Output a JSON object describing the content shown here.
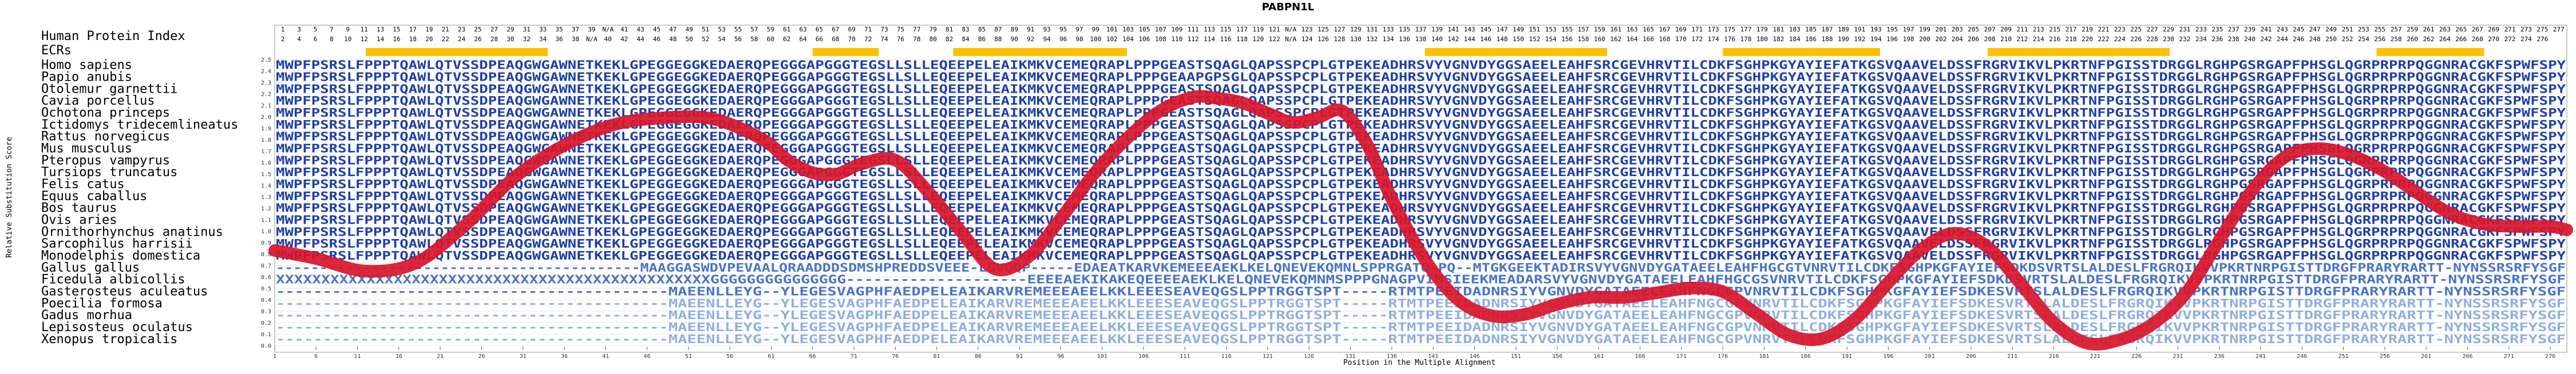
{
  "title": "PABPN1L",
  "header": {
    "index_label": "Human Protein Index",
    "ecr_label": "ECRs",
    "index_row1": [
      "1",
      "3",
      "5",
      "7",
      "9",
      "11",
      "13",
      "15",
      "17",
      "19",
      "21",
      "23",
      "25",
      "27",
      "29",
      "31",
      "33",
      "35",
      "37",
      "39",
      "N/A",
      "41",
      "43",
      "45",
      "47",
      "49",
      "51",
      "53",
      "55",
      "57",
      "59",
      "61",
      "63",
      "65",
      "67",
      "69",
      "71",
      "73",
      "75",
      "77",
      "79",
      "81",
      "83",
      "85",
      "87",
      "89",
      "91",
      "93",
      "95",
      "97",
      "99",
      "101",
      "103",
      "105",
      "107",
      "109",
      "111",
      "113",
      "115",
      "117",
      "119",
      "121",
      "N/A",
      "123",
      "125",
      "127",
      "129",
      "131",
      "133",
      "135",
      "137",
      "139",
      "141",
      "143",
      "145",
      "147",
      "149",
      "151",
      "153",
      "155",
      "157",
      "159",
      "161",
      "163",
      "165",
      "167",
      "169",
      "171",
      "173",
      "175",
      "177",
      "179",
      "181",
      "183",
      "185",
      "187",
      "189",
      "191",
      "193",
      "195",
      "197",
      "199",
      "201",
      "203",
      "205",
      "207",
      "209",
      "211",
      "213",
      "215",
      "217",
      "219",
      "221",
      "223",
      "225",
      "227",
      "229",
      "231",
      "233",
      "235",
      "237",
      "239",
      "241",
      "243",
      "245",
      "247",
      "249",
      "251",
      "253",
      "255",
      "257",
      "259",
      "261",
      "263",
      "265",
      "267",
      "269",
      "271",
      "273",
      "275",
      "277"
    ],
    "index_row2": [
      "2",
      "4",
      "6",
      "8",
      "10",
      "12",
      "14",
      "16",
      "18",
      "20",
      "22",
      "24",
      "26",
      "28",
      "30",
      "32",
      "34",
      "36",
      "38",
      "N/A",
      "40",
      "42",
      "44",
      "46",
      "48",
      "50",
      "52",
      "54",
      "56",
      "58",
      "60",
      "62",
      "64",
      "66",
      "68",
      "70",
      "72",
      "74",
      "76",
      "78",
      "80",
      "82",
      "84",
      "86",
      "88",
      "90",
      "92",
      "94",
      "96",
      "98",
      "100",
      "102",
      "104",
      "106",
      "108",
      "110",
      "112",
      "114",
      "116",
      "118",
      "120",
      "122",
      "N/A",
      "124",
      "126",
      "128",
      "130",
      "132",
      "134",
      "136",
      "138",
      "140",
      "142",
      "144",
      "146",
      "148",
      "150",
      "152",
      "154",
      "156",
      "158",
      "160",
      "162",
      "164",
      "166",
      "168",
      "170",
      "172",
      "174",
      "176",
      "178",
      "180",
      "182",
      "184",
      "186",
      "188",
      "190",
      "192",
      "194",
      "196",
      "198",
      "200",
      "202",
      "204",
      "206",
      "208",
      "210",
      "212",
      "214",
      "216",
      "218",
      "220",
      "222",
      "224",
      "226",
      "228",
      "230",
      "232",
      "234",
      "236",
      "238",
      "240",
      "242",
      "244",
      "246",
      "248",
      "250",
      "252",
      "254",
      "256",
      "258",
      "260",
      "262",
      "264",
      "266",
      "268",
      "270",
      "272",
      "274",
      "276"
    ]
  },
  "colors": {
    "ecr": "#FFC000",
    "curve": "#D8152A",
    "seq_dark": "#1F3FA8",
    "seq_mid": "#4A74C9",
    "seq_light": "#8FB0E0",
    "frame": "#999999",
    "grid": "#D0D0D0"
  },
  "chart_data": {
    "type": "line",
    "title": "PABPN1L",
    "xlabel": "Position in the Multiple Alignment",
    "ylabel": "Relative Substitution Score",
    "xlim": [
      1,
      278
    ],
    "ylim": [
      0,
      2.5
    ],
    "y_ticks": [
      "0.0",
      "0.1",
      "0.2",
      "0.3",
      "0.4",
      "0.5",
      "0.6",
      "0.7",
      "0.8",
      "0.9",
      "1.0",
      "1.1",
      "1.2",
      "1.3",
      "1.4",
      "1.5",
      "1.6",
      "1.7",
      "1.8",
      "1.9",
      "2.0",
      "2.1",
      "2.2",
      "2.3",
      "2.4",
      "2.5"
    ],
    "x_ticks": [
      "1",
      "6",
      "11",
      "16",
      "21",
      "26",
      "31",
      "36",
      "41",
      "46",
      "51",
      "56",
      "61",
      "66",
      "71",
      "76",
      "81",
      "86",
      "91",
      "96",
      "101",
      "106",
      "111",
      "116",
      "121",
      "126",
      "131",
      "136",
      "141",
      "146",
      "151",
      "156",
      "161",
      "166",
      "171",
      "176",
      "181",
      "186",
      "191",
      "196",
      "201",
      "206",
      "211",
      "216",
      "221",
      "226",
      "231",
      "236",
      "241",
      "246",
      "251",
      "256",
      "261",
      "266",
      "271",
      "276"
    ],
    "ecr_regions": [
      [
        12,
        34
      ],
      [
        66,
        74
      ],
      [
        83,
        104
      ],
      [
        140,
        162
      ],
      [
        176,
        195
      ],
      [
        208,
        230
      ],
      [
        255,
        268
      ]
    ],
    "series": [
      {
        "x": [
          1,
          6,
          12,
          18,
          24,
          30,
          36,
          42,
          48,
          54,
          60,
          63,
          66,
          69,
          72,
          76,
          80,
          84,
          88,
          92,
          96,
          100,
          104,
          108,
          112,
          115,
          118,
          121,
          124,
          127,
          130,
          133,
          136,
          140,
          144,
          148,
          152,
          156,
          160,
          164,
          168,
          172,
          176,
          180,
          184,
          188,
          192,
          196,
          200,
          204,
          208,
          212,
          216,
          220,
          224,
          228,
          232,
          236,
          240,
          244,
          248,
          252,
          256,
          260,
          264,
          268,
          272,
          276,
          278
        ],
        "y": [
          0.83,
          0.76,
          0.65,
          0.72,
          1.05,
          1.47,
          1.75,
          1.93,
          1.99,
          1.98,
          1.8,
          1.62,
          1.51,
          1.5,
          1.59,
          1.62,
          1.34,
          0.99,
          0.67,
          0.77,
          1.11,
          1.5,
          1.81,
          2.05,
          2.17,
          2.16,
          2.12,
          2.03,
          1.95,
          1.99,
          2.05,
          1.76,
          1.28,
          0.75,
          0.4,
          0.26,
          0.27,
          0.36,
          0.42,
          0.42,
          0.46,
          0.5,
          0.47,
          0.28,
          0.09,
          0.06,
          0.23,
          0.55,
          0.84,
          0.98,
          0.86,
          0.54,
          0.2,
          0.02,
          0.05,
          0.19,
          0.46,
          0.92,
          1.36,
          1.65,
          1.72,
          1.66,
          1.52,
          1.33,
          1.15,
          1.06,
          1.04,
          1.04,
          1.01
        ]
      }
    ]
  },
  "alignment": {
    "species": [
      "Homo sapiens",
      "Papio anubis",
      "Otolemur garnettii",
      "Cavia porcellus",
      "Ochotona princeps",
      "Ictidomys tridecemlineatus",
      "Rattus norvegicus",
      "Mus musculus",
      "Pteropus vampyrus",
      "Tursiops truncatus",
      "Felis catus",
      "Equus caballus",
      "Bos taurus",
      "Ovis aries",
      "Ornithorhynchus anatinus",
      "Sarcophilus harrisii",
      "Monodelphis domestica",
      "Gallus gallus",
      "Ficedula albicollis",
      "Gasterosteus aculeatus",
      "Poecilia formosa",
      "Gadus morhua",
      "Lepisosteus oculatus",
      "Xenopus tropicalis"
    ],
    "sequences": [
      "MWPFPSRSLFPPPTQAWLQTVSSDPEAQGWGAWNETKEKLGPEGGEGGKEDAERQPEGGGAPGGGTEGSLLSLLEQEEPELEAIKMKVCEMEQRAPLPPPGEASTSQAGLQAPSSPCPLGTPEKEADHRSVYVGNVDYGGSAEELEAHFSRCGEVHRVTILCDKFSGHPKGYAYIEFATKGSVQAAVELDSSFRGRVIKVLPKRTNFPGISSTDRGGLRGHPGSRGAPFPHSGLQGRPRPRPQGGNRACGKFSPWFSPY",
      "MWPFPSRSLFPPPTQAWLQTVSSDPEAQGWGAWNETKEKLGPEGGEGGKEDAERQPEGGGAPGGGTEGSLLSLLEQEEPELEAIKMKVCEMEQRAPLPPPGEAAPGPSGLQAPSSPCPLGTPEKEADHRSVYVGNVDYGGSAEELEAHFSRCGEVHRVTILCDKFSGHPKGYAYIEFATKGSVQAAVELDSSFRGRVIKVLPKRTNFPGISSTDRGGLRGHPGSRGAPFPHSGLQGRPRPRPQGGNRACGKFSPWFSPY",
      "MWPFPSRSLFPPPTQAWLQTVSSDPEAQGWGAWNETKEKLGPEGGEGGKEDAERQPEGGGAPGGGTEGSLLSLLEQEEPELEAIKMKVCEMEQRAPLPPPGEASTSQAGLQAPSSPCPLGTPEKEADHRSVYVGNVDYGGSAEELEAHFSRCGEVHRVTILCDKFSGHPKGYAYIEFATKGSVQAAVELDSSFRGRVIKVLPKRTNFPGISSTDRGGLRGHPGSRGAPFPHSGLQGRPRPRPQGGNRACGKFSPWFSPY",
      "MWPFPSRSLFPPPTQAWLQTVSSDPEAQGWGAWNETKEKLGPEGGEGGKEDAERQPEGGGAPGGGTEGSLLSLLEQEEPELEAIKMKVCEMEQRAPLPPPGEASTSQAGLQAPSSPCPLGTPEKEADHRSVYVGNVDYGGSAEELEAHFSRCGEVHRVTILCDKFSGHPKGYAYIEFATKGSVQAAVELDSSFRGRVIKVLPKRTNFPGISSTDRGGLRGHPGSRGAPFPHSGLQGRPRPRPQGGNRACGKFSPWFSPY",
      "MWPFPSRSLFPPPTQAWLQTVSSDPEAQGWGAWNETKEKLGPEGGEGGKEDAERQPEGGGAPGGGTEGSLLSLLEQEEPELEAIKMKVCEMEQRAPLPPPGEASTSQAGLQAPSSPCPLGTPEKEADHRSVYVGNVDYGGSAEELEAHFSRCGEVHRVTILCDKFSGHPKGYAYIEFATKGSVQAAVELDSSFRGRVIKVLPKRTNFPGISSTDRGGLRGHPGSRGAPFPHSGLQGRPRPRPQGGNRACGKFSPWFSPY",
      "MWPFPSRSLFPPPTQAWLQTVSSDPEAQGWGAWNETKEKLGPEGGEGGKEDAERQPEGGGAPGGGTEGSLLSLLEQEEPELEAIKMKVCEMEQRAPLPPPGEASTSQAGLQAPSSPCPLGTPEKEADHRSVYVGNVDYGGSAEELEAHFSRCGEVHRVTILCDKFSGHPKGYAYIEFATKGSVQAAVELDSSFRGRVIKVLPKRTNFPGISSTDRGGLRGHPGSRGAPFPHSGLQGRPRPRPQGGNRACGKFSPWFSPY",
      "MWPFPSRSLFPPPTQAWLQTVSSDPEAQGWGAWNETKEKLGPEGGEGGKEDAERQPEGGGAPGGGTEGSLLSLLEQEEPELEAIKMKVCEMEQRAPLPPPGEASTSQAGLQAPSSPCPLGTPEKEADHRSVYVGNVDYGGSAEELEAHFSRCGEVHRVTILCDKFSGHPKGYAYIEFATKGSVQAAVELDSSFRGRVIKVLPKRTNFPGISSTDRGGLRGHPGSRGAPFPHSGLQGRPRPRPQGGNRACGKFSPWFSPY",
      "MWPFPSRSLFPPPTQAWLQTVSSDPEAQGWGAWNETKEKLGPEGGEGGKEDAERQPEGGGAPGGGTEGSLLSLLEQEEPELEAIKMKVCEMEQRAPLPPPGEASTSQAGLQAPSSPCPLGTPEKEADHRSVYVGNVDYGGSAEELEAHFSRCGEVHRVTILCDKFSGHPKGYAYIEFATKGSVQAAVELDSSFRGRVIKVLPKRTNFPGISSTDRGGLRGHPGSRGAPFPHSGLQGRPRPRPQGGNRACGKFSPWFSPY",
      "MWPFPSRSLFPPPTQAWLQTVSSDPEAQGWGAWNETKEKLGPEGGEGGKEDAERQPEGGGAPGGGTEGSLLSLLEQEEPELEAIKMKVCEMEQRAPLPPPGEASTSQAGLQAPSSPCPLGTPEKEADHRSVYVGNVDYGGSAEELEAHFSRCGEVHRVTILCDKFSGHPKGYAYIEFATKGSVQAAVELDSSFRGRVIKVLPKRTNFPGISSTDRGGLRGHPGSRGAPFPHSGLQGRPRPRPQGGNRACGKFSPWFSPY",
      "MWPFPSRSLFPPPTQAWLQTVSSDPEAQGWGAWNETKEKLGPEGGEGGKEDAERQPEGGGAPGGGTEGSLLSLLEQEEPELEAIKMKVCEMEQRAPLPPPGEASTSQAGLQAPSSPCPLGTPEKEADHRSVYVGNVDYGGSAEELEAHFSRCGEVHRVTILCDKFSGHPKGYAYIEFATKGSVQAAVELDSSFRGRVIKVLPKRTNFPGISSTDRGGLRGHPGSRGAPFPHSGLQGRPRPRPQGGNRACGKFSPWFSPY",
      "MWPFPSRSLFPPPTQAWLQTVSSDPEAQGWGAWNETKEKLGPEGGEGGKEDAERQPEGGGAPGGGTEGSLLSLLEQEEPELEAIKMKVCEMEQRAPLPPPGEASTSQAGLQAPSSPCPLGTPEKEADHRSVYVGNVDYGGSAEELEAHFSRCGEVHRVTILCDKFSGHPKGYAYIEFATKGSVQAAVELDSSFRGRVIKVLPKRTNFPGISSTDRGGLRGHPGSRGAPFPHSGLQGRPRPRPQGGNRACGKFSPWFSPY",
      "MWPFPSRSLFPPPTQAWLQTVSSDPEAQGWGAWNETKEKLGPEGGEGGKEDAERQPEGGGAPGGGTEGSLLSLLEQEEPELEAIKMKVCEMEQRAPLPPPGEASTSQAGLQAPSSPCPLGTPEKEADHRSVYVGNVDYGGSAEELEAHFSRCGEVHRVTILCDKFSGHPKGYAYIEFATKGSVQAAVELDSSFRGRVIKVLPKRTNFPGISSTDRGGLRGHPGSRGAPFPHSGLQGRPRPRPQGGNRACGKFSPWFSPY",
      "MWPFPSRSLFPPPTQAWLQTVSSDPEAQGWGAWNETKEKLGPEGGEGGKEDAERQPEGGGAPGGGTEGSLLSLLEQEEPELEAIKMKVCEMEQRAPLPPPGEASTSQAGLQAPSSPCPLGTPEKEADHRSVYVGNVDYGGSAEELEAHFSRCGEVHRVTILCDKFSGHPKGYAYIEFATKGSVQAAVELDSSFRGRVIKVLPKRTNFPGISSTDRGGLRGHPGSRGAPFPHSGLQGRPRPRPQGGNRACGKFSPWFSPY",
      "MWPFPSRSLFPPPTQAWLQTVSSDPEAQGWGAWNETKEKLGPEGGEGGKEDAERQPEGGGAPGGGTEGSLLSLLEQEEPELEAIKMKVCEMEQRAPLPPPGEASTSQAGLQAPSSPCPLGTPEKEADHRSVYVGNVDYGGSAEELEAHFSRCGEVHRVTILCDKFSGHPKGYAYIEFATKGSVQAAVELDSSFRGRVIKVLPKRTNFPGISSTDRGGLRGHPGSRGAPFPHSGLQGRPRPRPQGGNRACGKFSPWFSPY",
      "MWPFPSRSLFPPPTQAWLQTVSSDPEAQGWGAWNETKEKLGPEGGEGGKEDAERQPEGGGAPGGGTEGSLLSLLEQEEPELEAIKMKVCEMEQRAPLPPPGEASTSQAGLQAPSSPCPLGTPEKEADHRSVYVGNVDYGGSAEELEAHFSRCGEVHRVTILCDKFSGHPKGYAYIEFATKGSVQAAVELDSSFRGRVIKVLPKRTNFPGISSTDRGGLRGHPGSRGAPFPHSGLQGRPRPRPQGGNRACGKFSPWFSPY",
      "MWPFPSRSLFPPPTQAWLQTVSSDPEAQGWGAWNETKEKLGPEGGEGGKEDAERQPEGGGAPGGGTEGSLLSLLEQEEPELEAIKMKVCEMEQRAPLPPPGEASTSQAGLQAPSSPCPLGTPEKEADHRSVYVGNVDYGGSAEELEAHFSRCGEVHRVTILCDKFSGHPKGYAYIEFATKGSVQAAVELDSSFRGRVIKVLPKRTNFPGISSTDRGGLRGHPGSRGAPFPHSGLQGRPRPRPQGGNRACGKFSPWFSPY",
      "MWPFPSRSLFPPPTQAWLQTVSSDPEAQGWGAWNETKEKLGPEGGEGGKEDAERQPEGGGAPGGGTEGSLLSLLEQEEPELEAIKMKVCEMEQRAPLPPPGEASTSQAGLQAPSSPCPLGTPEKEADHRSVYVGNVDYGGSAEELEAHFSRCGEVHRVTILCDKFSGHPKGYAYIEFATKGSVQAAVELDSSFRGRVIKVLPKRTNFPGISSTDRGGLRGHPGSRGAPFPHSGLQGRPRPRPQGGNRACGKFSPWFSPY",
      "------------------------------------------MAAGGASWDVPEVAALQRAADDDSDMSHPREDDSVEEE-LGVQQP-----EDAEATKARVKEMEEEAEKLKELQNEVEKQMNLSPPRGATQ-PQ--MTGKGEEKTADIRSVYVGNVDYGATAEELEAHFHGCGTVNRVTILCDKFSGHPKGFAYIEFSDKDSVRTSLALDESLFRGRQIKVVPKRTNRPGISTTDRGFPRARYRARTT-NYNSSRSRFYSGF",
      "XXXXXXXXXXXXXXXXXXXXXXXXXXXXXXXXXXXXXXXXXXXXXXXXGGGGGGGGGGGGGGG--------------------EEEEAEKIKAKEQEEEEAEKLKELQNEVEKQMNMSPPPGNAGPVIMSIEEKMEADARSVYVGNVDYGATAEELEAHFHGCGSVNRVTILCDKFSGHPKGFAYIEFSDKDSVRTSLALDESLFRGRQIKVVPKRTNRPGISTTDRGFPRARYRARTT-NYNSSRSRFYSGF",
      "------------------------------------------MAEENLLEYG--YLEGESVAGPHFAEDPELEAIKARVREMEEEAEELKKLEEESEAVEQGSLPPTRGGTSPT-----RTMTPEEIDADNRSIYVGNVDYGATAEELEAHFNGCGPVNRVTILCDKFSGHPKGFAYIEFSDKESVRTSLALDESLFRGRQIKVVPKRTNRPGISTTDRGFPRARYRARTT-NYNSSRSRFYSGF",
      "------------------------------------------MAEENLLEYG--YLEGESVAGPHFAEDPELEAIKARVREMEEEAEELKKLEEESEAVEQGSLPPTRGGTSPT-----RTMTPEEIDADNRSIYVGNVDYGATAEELEAHFNGCGPVNRVTILCDKFSGHPKGFAYIEFSDKESVRTSLALDESLFRGRQIKVVPKRTNRPGISTTDRGFPRARYRARTT-NYNSSRSRFYSGF",
      "------------------------------------------MAEENLLEYG--YLEGESVAGPHFAEDPELEAIKARVREMEEEAEELKKLEEESEAVEQGSLPPTRGGTSPT-----RTMTPEEIDADNRSIYVGNVDYGATAEELEAHFNGCGPVNRVTILCDKFSGHPKGFAYIEFSDKESVRTSLALDESLFRGRQIKVVPKRTNRPGISTTDRGFPRARYRARTT-NYNSSRSRFYSGF",
      "------------------------------------------MAEENLLEYG--YLEGESVAGPHFAEDPELEAIKARVREMEEEAEELKKLEEESEAVEQGSLPPTRGGTSPT-----RTMTPEEIDADNRSIYVGNVDYGATAEELEAHFNGCGPVNRVTILCDKFSGHPKGFAYIEFSDKESVRTSLALDESLFRGRQIKVVPKRTNRPGISTTDRGFPRARYRARTT-NYNSSRSRFYSGF",
      "------------------------------------------MAEENLLEYG--YLEGESVAGPHFAEDPELEAIKARVREMEEEAEELKKLEEESEAVEQGSLPPTRGGTSPT-----RTMTPEEIDADNRSIYVGNVDYGATAEELEAHFNGCGPVNRVTILCDKFSGHPKGFAYIEFSDKESVRTSLALDESLFRGRQIKVVPKRTNRPGISTTDRGFPRARYRARTT-NYNSSRSRFYSGF"
    ]
  }
}
